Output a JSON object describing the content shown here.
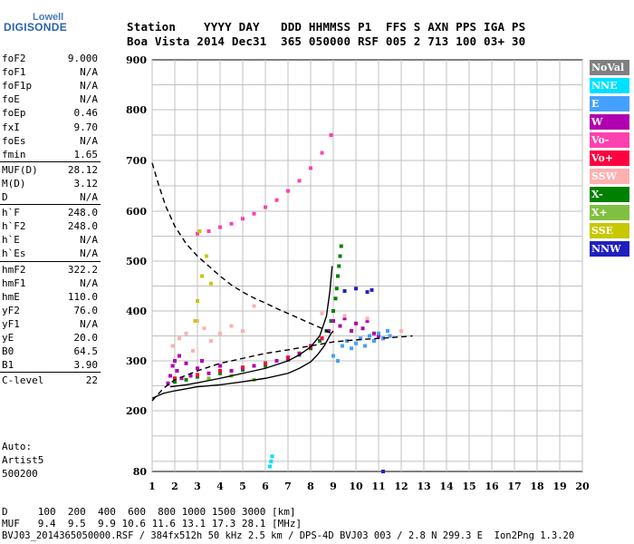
{
  "logo": {
    "top": "Lowell",
    "main": "DIGISONDE"
  },
  "header": {
    "labels": "Station    YYYY DAY   DDD HHMMSS P1  FFS S AXN PPS IGA PS",
    "values": "Boa Vista 2014 Dec31  365 050000 RSF 005 2 713 100 03+ 30"
  },
  "params": [
    {
      "name": "foF2",
      "value": "9.000"
    },
    {
      "name": "foF1",
      "value": "N/A"
    },
    {
      "name": "foF1p",
      "value": "N/A"
    },
    {
      "name": "foE",
      "value": "N/A"
    },
    {
      "name": "foEp",
      "value": "0.46"
    },
    {
      "name": "fxI",
      "value": "9.70"
    },
    {
      "name": "foEs",
      "value": "N/A"
    },
    {
      "name": "fmin",
      "value": "1.65"
    },
    {
      "name": "MUF(D)",
      "value": "28.12"
    },
    {
      "name": "M(D)",
      "value": "3.12"
    },
    {
      "name": "D",
      "value": "N/A"
    },
    {
      "name": "h`F",
      "value": "248.0"
    },
    {
      "name": "h`F2",
      "value": "248.0"
    },
    {
      "name": "h`E",
      "value": "N/A"
    },
    {
      "name": "h`Es",
      "value": "N/A"
    },
    {
      "name": "hmF2",
      "value": "322.2"
    },
    {
      "name": "hmF1",
      "value": "N/A"
    },
    {
      "name": "hmE",
      "value": "110.0"
    },
    {
      "name": "yF2",
      "value": "76.0"
    },
    {
      "name": "yF1",
      "value": "N/A"
    },
    {
      "name": "yE",
      "value": "20.0"
    },
    {
      "name": "B0",
      "value": "64.5"
    },
    {
      "name": "B1",
      "value": "3.90"
    },
    {
      "name": "C-level",
      "value": "22"
    }
  ],
  "autoscale": {
    "line1": "Auto:",
    "line2": "Artist5",
    "line3": "500200"
  },
  "legend": [
    {
      "label": "NoVal",
      "color": "#808080"
    },
    {
      "label": "NNE",
      "color": "#00e0ff"
    },
    {
      "label": "E",
      "color": "#44a0ff"
    },
    {
      "label": "W",
      "color": "#b000b0"
    },
    {
      "label": "Vo-",
      "color": "#ff40b0"
    },
    {
      "label": "Vo+",
      "color": "#ff0040"
    },
    {
      "label": "SSW",
      "color": "#ffb0b0"
    },
    {
      "label": "X-",
      "color": "#008000"
    },
    {
      "label": "X+",
      "color": "#80c040"
    },
    {
      "label": "SSE",
      "color": "#c8c800"
    },
    {
      "label": "NNW",
      "color": "#2020c0"
    }
  ],
  "footer": {
    "line1": "D     100  200  400  600  800 1000 1500 3000 [km]",
    "line2": "MUF   9.4  9.5  9.9 10.6 11.6 13.1 17.3 28.1 [MHz]",
    "line3": "BVJ03_2014365050000.RSF / 384fx512h 50 kHz 2.5 km / DPS-4D BVJ03 003 / 2.8 N 299.3 E  Ion2Png 1.3.20"
  },
  "chart_data": {
    "type": "scatter",
    "title": "",
    "xlabel": "",
    "ylabel": "",
    "xlim": [
      1,
      20
    ],
    "ylim": [
      80,
      900
    ],
    "x_ticks": [
      1,
      2,
      3,
      4,
      5,
      6,
      7,
      8,
      9,
      10,
      11,
      12,
      13,
      14,
      15,
      16,
      17,
      18,
      19,
      20
    ],
    "y_ticks": [
      80,
      200,
      300,
      400,
      500,
      600,
      700,
      800,
      900
    ],
    "grid": true,
    "series": [
      {
        "name": "X-",
        "kind": "points",
        "color": "#008000",
        "x": [
          2.0,
          2.5,
          3.0,
          4.0,
          5.0,
          6.0,
          7.0,
          7.5,
          8.0,
          8.4,
          8.7,
          8.9,
          9.0,
          9.1,
          9.15,
          9.2,
          9.25,
          9.3,
          9.35
        ],
        "y": [
          258,
          262,
          268,
          275,
          282,
          290,
          302,
          312,
          325,
          340,
          360,
          380,
          400,
          425,
          445,
          470,
          490,
          510,
          530
        ]
      },
      {
        "name": "W",
        "kind": "points",
        "color": "#b000b0",
        "x": [
          1.7,
          1.8,
          1.9,
          2.0,
          2.1,
          2.2,
          2.3,
          2.5,
          2.7,
          3.0,
          3.2,
          3.5,
          4.0,
          4.5,
          5.0,
          5.5,
          6.0,
          6.5,
          7.0,
          7.5,
          8.0,
          8.5,
          8.8,
          9.0,
          9.3,
          9.5,
          9.8,
          10.0,
          10.3,
          10.5,
          10.8,
          11.0,
          11.2
        ],
        "y": [
          255,
          270,
          290,
          300,
          280,
          310,
          265,
          295,
          270,
          285,
          300,
          275,
          290,
          280,
          285,
          290,
          295,
          300,
          305,
          315,
          330,
          345,
          360,
          380,
          370,
          385,
          360,
          375,
          365,
          380,
          355,
          350,
          345
        ]
      },
      {
        "name": "E",
        "kind": "points",
        "color": "#44a0ff",
        "x": [
          9.0,
          9.2,
          9.4,
          9.6,
          9.8,
          10.0,
          10.2,
          10.4,
          10.6,
          10.8,
          11.0,
          11.2,
          11.4,
          11.5
        ],
        "y": [
          310,
          300,
          330,
          340,
          325,
          335,
          345,
          330,
          350,
          340,
          355,
          345,
          360,
          350
        ]
      },
      {
        "name": "Vo+",
        "kind": "points",
        "color": "#ff0040",
        "x": [
          2.0,
          3.0,
          4.0,
          5.0,
          6.0,
          7.0,
          8.0,
          8.5
        ],
        "y": [
          265,
          272,
          280,
          287,
          295,
          307,
          328,
          345
        ]
      },
      {
        "name": "Vo-",
        "kind": "points",
        "color": "#ff40b0",
        "x": [
          3.0,
          3.5,
          4.0,
          4.5,
          5.0,
          5.5,
          6.0,
          6.5,
          7.0,
          7.5,
          8.0,
          8.5,
          8.9
        ],
        "y": [
          555,
          560,
          568,
          575,
          585,
          595,
          608,
          622,
          640,
          660,
          685,
          715,
          750
        ]
      },
      {
        "name": "SSW",
        "kind": "points",
        "color": "#ffb0b0",
        "x": [
          1.9,
          2.2,
          2.5,
          2.8,
          3.0,
          3.3,
          3.6,
          4.0,
          4.5,
          5.0,
          5.5,
          8.5,
          9.5,
          10.5,
          12.0
        ],
        "y": [
          330,
          345,
          355,
          320,
          380,
          365,
          340,
          355,
          370,
          360,
          410,
          395,
          390,
          385,
          360
        ]
      },
      {
        "name": "SSE",
        "kind": "points",
        "color": "#c8c800",
        "x": [
          2.9,
          3.0,
          3.1,
          3.2,
          3.4,
          3.6
        ],
        "y": [
          380,
          420,
          560,
          470,
          510,
          455
        ]
      },
      {
        "name": "NNW",
        "kind": "points",
        "color": "#2020c0",
        "x": [
          9.5,
          10.0,
          10.5,
          10.7,
          11.2
        ],
        "y": [
          440,
          445,
          438,
          442,
          80
        ]
      },
      {
        "name": "X+",
        "kind": "points",
        "color": "#80c040",
        "x": [
          3.5,
          4.5,
          5.5
        ],
        "y": [
          265,
          270,
          262
        ]
      },
      {
        "name": "NNE",
        "kind": "points",
        "color": "#00e0ff",
        "x": [
          6.2,
          6.25,
          6.3
        ],
        "y": [
          90,
          100,
          110
        ]
      },
      {
        "name": "",
        "kind": "line",
        "style": "solid",
        "color": "#000",
        "x": [
          1.0,
          1.5,
          2.0,
          3.0,
          4.0,
          5.0,
          6.0,
          7.0,
          7.5,
          8.0,
          8.3,
          8.6,
          8.9,
          9.0
        ],
        "y": [
          225,
          235,
          240,
          248,
          252,
          258,
          265,
          275,
          285,
          298,
          312,
          330,
          355,
          360
        ]
      },
      {
        "name": "",
        "kind": "line",
        "style": "solid",
        "color": "#000",
        "x": [
          1.8,
          2.5,
          3.0,
          4.0,
          5.0,
          6.0,
          7.0,
          7.5,
          8.0,
          8.4,
          8.7,
          8.85,
          8.95
        ],
        "y": [
          248,
          252,
          256,
          265,
          275,
          285,
          300,
          312,
          328,
          350,
          390,
          440,
          490
        ]
      },
      {
        "name": "",
        "kind": "line",
        "style": "dashed",
        "color": "#000",
        "x": [
          1.0,
          1.3,
          1.6,
          2.0,
          2.5,
          3.0,
          3.5,
          4.0,
          4.5,
          5.0,
          5.5,
          6.0,
          6.5,
          7.0,
          7.5,
          8.0,
          8.5,
          8.9
        ],
        "y": [
          695,
          650,
          610,
          570,
          535,
          510,
          490,
          470,
          452,
          438,
          426,
          416,
          405,
          395,
          385,
          375,
          365,
          355
        ]
      },
      {
        "name": "",
        "kind": "line",
        "style": "dashed",
        "color": "#000",
        "x": [
          1.0,
          1.5,
          2.0,
          3.0,
          4.0,
          5.0,
          6.0,
          7.0,
          8.0,
          9.0,
          10.0,
          11.0,
          12.0,
          12.5
        ],
        "y": [
          220,
          245,
          262,
          280,
          295,
          305,
          315,
          322,
          330,
          338,
          342,
          345,
          348,
          350
        ]
      }
    ]
  }
}
